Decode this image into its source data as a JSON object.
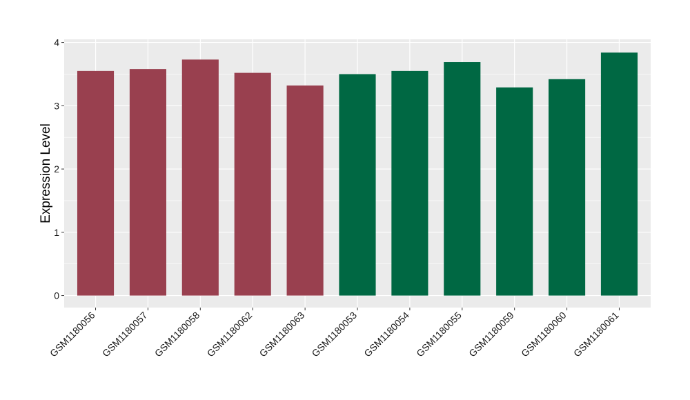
{
  "chart_data": {
    "type": "bar",
    "title": "",
    "xlabel": "",
    "ylabel": "Expression Level",
    "categories": [
      "GSM1180056",
      "GSM1180057",
      "GSM1180058",
      "GSM1180062",
      "GSM1180063",
      "GSM1180053",
      "GSM1180054",
      "GSM1180055",
      "GSM1180059",
      "GSM1180060",
      "GSM1180061"
    ],
    "values": [
      3.55,
      3.58,
      3.73,
      3.52,
      3.32,
      3.5,
      3.55,
      3.69,
      3.29,
      3.42,
      3.84
    ],
    "bar_colors": [
      "#99404f",
      "#99404f",
      "#99404f",
      "#99404f",
      "#99404f",
      "#006843",
      "#006843",
      "#006843",
      "#006843",
      "#006843",
      "#006843"
    ],
    "ylim": [
      -0.19,
      4.05
    ],
    "yticks": [
      0,
      1,
      2,
      3,
      4
    ],
    "grid": true,
    "panel_background": "#ebebeb",
    "gridline_color": "#ffffff"
  }
}
